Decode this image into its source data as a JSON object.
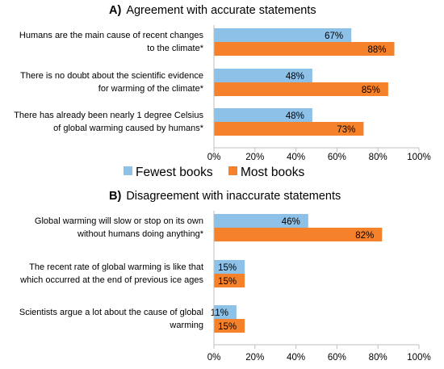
{
  "chart_data": [
    {
      "type": "bar",
      "orientation": "horizontal",
      "panel_letter": "A)",
      "title": "Agreement with accurate statements",
      "categories": [
        [
          "Humans are the main cause of recent changes",
          "to the climate*"
        ],
        [
          "There is no doubt about the scientific evidence",
          "for warming of the climate*"
        ],
        [
          "There has already been nearly 1 degree Celsius",
          "of global warming caused by humans*"
        ]
      ],
      "series": [
        {
          "name": "Fewest books",
          "color": "#8ec1e8",
          "values": [
            67,
            48,
            48
          ],
          "labels": [
            "67%",
            "48%",
            "48%"
          ]
        },
        {
          "name": "Most books",
          "color": "#f5822a",
          "values": [
            88,
            85,
            73
          ],
          "labels": [
            "88%",
            "85%",
            "73%"
          ]
        }
      ],
      "xlim": [
        0,
        100
      ],
      "ticks": [
        0,
        20,
        40,
        60,
        80,
        100
      ],
      "tick_labels": [
        "0%",
        "20%",
        "40%",
        "60%",
        "80%",
        "100%"
      ],
      "grid": false,
      "legend": "below"
    },
    {
      "type": "bar",
      "orientation": "horizontal",
      "panel_letter": "B)",
      "title": "Disagreement with inaccurate statements",
      "categories": [
        [
          "Global warming will slow or stop on its own",
          "without humans doing anything*"
        ],
        [
          "The recent rate of global warming is like that",
          "which occurred at the end of previous ice ages"
        ],
        [
          "Scientists argue a lot about the cause of global",
          "warming"
        ]
      ],
      "series": [
        {
          "name": "Fewest books",
          "color": "#8ec1e8",
          "values": [
            46,
            15,
            11
          ],
          "labels": [
            "46%",
            "15%",
            "11%"
          ]
        },
        {
          "name": "Most books",
          "color": "#f5822a",
          "values": [
            82,
            15,
            15
          ],
          "labels": [
            "82%",
            "15%",
            "15%"
          ]
        }
      ],
      "xlim": [
        0,
        100
      ],
      "ticks": [
        0,
        20,
        40,
        60,
        80,
        100
      ],
      "tick_labels": [
        "0%",
        "20%",
        "40%",
        "60%",
        "80%",
        "100%"
      ],
      "grid": false
    }
  ],
  "legend": [
    {
      "label": "Fewest books",
      "color": "#8ec1e8"
    },
    {
      "label": "Most books",
      "color": "#f5822a"
    }
  ]
}
